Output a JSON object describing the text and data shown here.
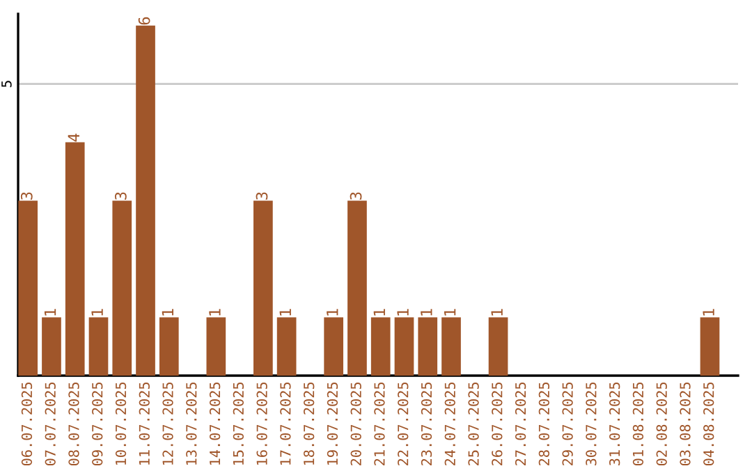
{
  "chart_data": {
    "type": "bar",
    "categories": [
      "06.07.2025",
      "07.07.2025",
      "08.07.2025",
      "09.07.2025",
      "10.07.2025",
      "11.07.2025",
      "12.07.2025",
      "13.07.2025",
      "14.07.2025",
      "15.07.2025",
      "16.07.2025",
      "17.07.2025",
      "18.07.2025",
      "19.07.2025",
      "20.07.2025",
      "21.07.2025",
      "22.07.2025",
      "23.07.2025",
      "24.07.2025",
      "25.07.2025",
      "26.07.2025",
      "27.07.2025",
      "28.07.2025",
      "29.07.2025",
      "30.07.2025",
      "31.07.2025",
      "01.08.2025",
      "02.08.2025",
      "03.08.2025",
      "04.08.2025"
    ],
    "values": [
      3,
      1,
      4,
      1,
      3,
      6,
      1,
      0,
      1,
      0,
      3,
      1,
      0,
      1,
      3,
      1,
      1,
      1,
      1,
      0,
      1,
      0,
      0,
      0,
      0,
      0,
      0,
      0,
      0,
      1
    ],
    "value_labels": [
      "3",
      "1",
      "4",
      "1",
      "3",
      "6",
      "1",
      null,
      "1",
      null,
      "3",
      "1",
      null,
      "1",
      "3",
      "1",
      "1",
      "1",
      "1",
      null,
      "1",
      null,
      null,
      null,
      null,
      null,
      null,
      null,
      null,
      "1"
    ],
    "color": "#a0562a",
    "ylim": [
      0,
      6.2
    ],
    "yticks": [
      5
    ],
    "grid": "y"
  }
}
